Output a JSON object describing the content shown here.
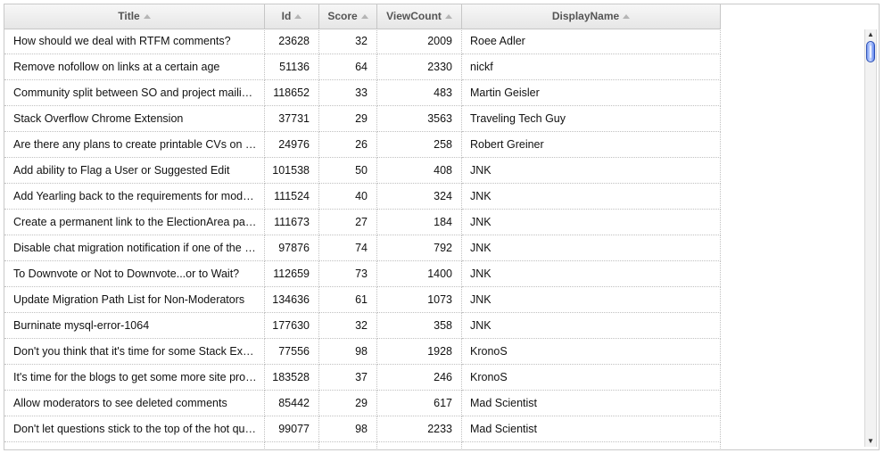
{
  "columns": [
    {
      "label": "Title"
    },
    {
      "label": "Id"
    },
    {
      "label": "Score"
    },
    {
      "label": "ViewCount"
    },
    {
      "label": "DisplayName"
    }
  ],
  "rows": [
    {
      "title": "How should we deal with RTFM comments?",
      "id": "23628",
      "score": "32",
      "viewcount": "2009",
      "name": "Roee Adler"
    },
    {
      "title": "Remove nofollow on links at a certain age",
      "id": "51136",
      "score": "64",
      "viewcount": "2330",
      "name": "nickf"
    },
    {
      "title": "Community split between SO and project mailing lists",
      "id": "118652",
      "score": "33",
      "viewcount": "483",
      "name": "Martin Geisler"
    },
    {
      "title": "Stack Overflow Chrome Extension",
      "id": "37731",
      "score": "29",
      "viewcount": "3563",
      "name": "Traveling Tech Guy"
    },
    {
      "title": "Are there any plans to create printable CVs on Careers",
      "id": "24976",
      "score": "26",
      "viewcount": "258",
      "name": "Robert Greiner"
    },
    {
      "title": "Add ability to Flag a User or Suggested Edit",
      "id": "101538",
      "score": "50",
      "viewcount": "408",
      "name": "JNK"
    },
    {
      "title": "Add Yearling back to the requirements for moderators",
      "id": "111524",
      "score": "40",
      "viewcount": "324",
      "name": "JNK"
    },
    {
      "title": "Create a permanent link to the ElectionArea page",
      "id": "111673",
      "score": "27",
      "viewcount": "184",
      "name": "JNK"
    },
    {
      "title": "Disable chat migration notification if one of the users",
      "id": "97876",
      "score": "74",
      "viewcount": "792",
      "name": "JNK"
    },
    {
      "title": "To Downvote or Not to Downvote...or to Wait?",
      "id": "112659",
      "score": "73",
      "viewcount": "1400",
      "name": "JNK"
    },
    {
      "title": "Update Migration Path List for Non-Moderators",
      "id": "134636",
      "score": "61",
      "viewcount": "1073",
      "name": "JNK"
    },
    {
      "title": "Burninate mysql-error-1064",
      "id": "177630",
      "score": "32",
      "viewcount": "358",
      "name": "JNK"
    },
    {
      "title": "Don't you think that it's time for some Stack Exchange",
      "id": "77556",
      "score": "98",
      "viewcount": "1928",
      "name": "KronoS"
    },
    {
      "title": "It's time for the blogs to get some more site promotion",
      "id": "183528",
      "score": "37",
      "viewcount": "246",
      "name": "KronoS"
    },
    {
      "title": "Allow moderators to see deleted comments",
      "id": "85442",
      "score": "29",
      "viewcount": "617",
      "name": "Mad Scientist"
    },
    {
      "title": "Don't let questions stick to the top of the hot questions",
      "id": "99077",
      "score": "98",
      "viewcount": "2233",
      "name": "Mad Scientist"
    },
    {
      "title": "",
      "id": "",
      "score": "",
      "viewcount": "",
      "name": ""
    }
  ],
  "icons": {
    "sort": "sort-asc-icon",
    "scroll_up": "scroll-up-arrow-icon",
    "scroll_down": "scroll-down-arrow-icon"
  },
  "colors": {
    "header_bg": "#eeeeee",
    "grid_line": "#c0c0c0",
    "scroll_thumb": "#6f92f2"
  }
}
